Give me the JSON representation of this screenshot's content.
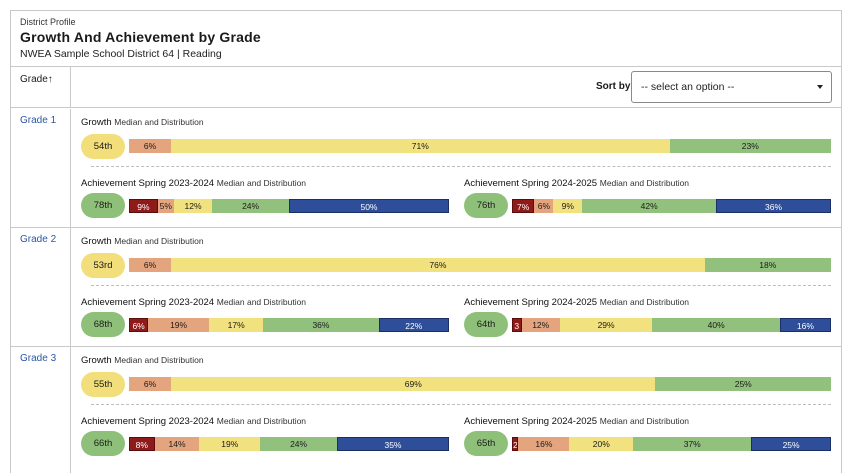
{
  "header": {
    "eyebrow": "District Profile",
    "title": "Growth And Achievement by Grade",
    "subtitle": "NWEA Sample School District 64 | Reading"
  },
  "columns": {
    "grade_label": "Grade",
    "sort_arrow": "↑",
    "sort_by_label": "Sort by",
    "sort_select_value": "-- select an option --"
  },
  "labels": {
    "growth": "Growth",
    "median_dist": "Median and Distribution",
    "ach_2324": "Achievement Spring 2023-2024",
    "ach_2425": "Achievement Spring 2024-2025"
  },
  "colors": {
    "dark_red": "#8e1a1a",
    "orange": "#e4a57e",
    "yellow": "#f2e17f",
    "green": "#92c17d",
    "blue": "#2e4e9a",
    "link_blue": "#2c56a3"
  },
  "grades": [
    {
      "name": "Grade 1",
      "growth": {
        "median": "54th",
        "segments": [
          "6%",
          "71%",
          "23%"
        ],
        "values": [
          6,
          71,
          23
        ]
      },
      "ach_2324": {
        "median": "78th",
        "segments": [
          "9%",
          "5%",
          "12%",
          "24%",
          "50%"
        ],
        "values": [
          9,
          5,
          12,
          24,
          50
        ]
      },
      "ach_2425": {
        "median": "76th",
        "segments": [
          "7%",
          "6%",
          "9%",
          "42%",
          "36%"
        ],
        "values": [
          7,
          6,
          9,
          42,
          36
        ]
      }
    },
    {
      "name": "Grade 2",
      "growth": {
        "median": "53rd",
        "segments": [
          "6%",
          "76%",
          "18%"
        ],
        "values": [
          6,
          76,
          18
        ]
      },
      "ach_2324": {
        "median": "68th",
        "segments": [
          "6%",
          "19%",
          "17%",
          "36%",
          "22%"
        ],
        "values": [
          6,
          19,
          17,
          36,
          22
        ]
      },
      "ach_2425": {
        "median": "64th",
        "segments": [
          "3",
          "12%",
          "29%",
          "40%",
          "16%"
        ],
        "values": [
          3,
          12,
          29,
          40,
          16
        ]
      }
    },
    {
      "name": "Grade 3",
      "growth": {
        "median": "55th",
        "segments": [
          "6%",
          "69%",
          "25%"
        ],
        "values": [
          6,
          69,
          25
        ]
      },
      "ach_2324": {
        "median": "66th",
        "segments": [
          "8%",
          "14%",
          "19%",
          "24%",
          "35%"
        ],
        "values": [
          8,
          14,
          19,
          24,
          35
        ]
      },
      "ach_2425": {
        "median": "65th",
        "segments": [
          "2",
          "16%",
          "20%",
          "37%",
          "25%"
        ],
        "values": [
          2,
          16,
          20,
          37,
          25
        ]
      }
    }
  ]
}
